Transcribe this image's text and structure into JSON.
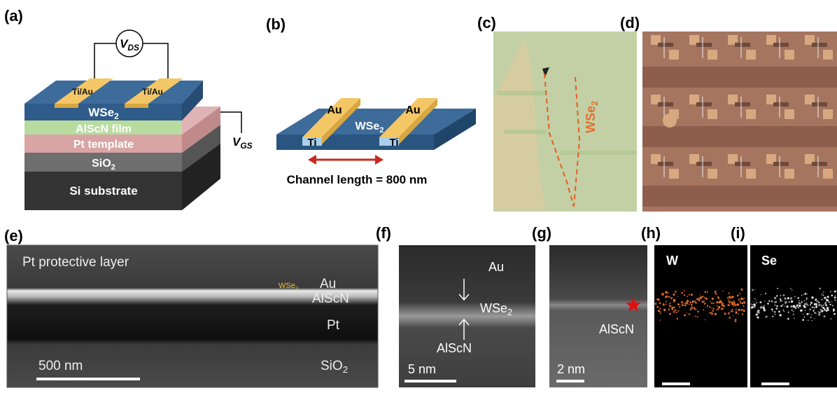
{
  "labels": {
    "a": "(a)",
    "b": "(b)",
    "c": "(c)",
    "d": "(d)",
    "e": "(e)",
    "f": "(f)",
    "g": "(g)",
    "h": "(h)",
    "i": "(i)"
  },
  "a": {
    "vds": {
      "main": "V",
      "sub": "DS"
    },
    "contacts": [
      "Ti/Au",
      "Ti/Au"
    ],
    "wse2": {
      "main": "WSe",
      "sub": "2"
    },
    "alscn": "AlScN film",
    "pt": "Pt template",
    "sio2": {
      "main": "SiO",
      "sub": "2"
    },
    "si": "Si substrate",
    "vgs": {
      "main": "V",
      "sub": "GS"
    }
  },
  "b": {
    "au": [
      "Au",
      "Au"
    ],
    "wse2": {
      "main": "WSe",
      "sub": "2"
    },
    "ti": [
      "Ti",
      "Ti"
    ],
    "channel": "Channel length = 800 nm"
  },
  "c": {
    "wse2": {
      "main": "WSe",
      "sub": "2"
    }
  },
  "e": {
    "protective": "Pt protective layer",
    "wse2": {
      "main": "WSe",
      "sub": "2"
    },
    "au": "Au",
    "alscn": "AlScN",
    "pt": "Pt",
    "scale": "500 nm",
    "sio2": {
      "main": "SiO",
      "sub": "2"
    }
  },
  "f": {
    "au": "Au",
    "wse2": {
      "main": "WSe",
      "sub": "2"
    },
    "alscn": "AlScN",
    "scale": "5 nm"
  },
  "g": {
    "alscn": "AlScN",
    "scale": "2 nm"
  },
  "h": {
    "element": "W"
  },
  "i": {
    "element": "Se"
  }
}
